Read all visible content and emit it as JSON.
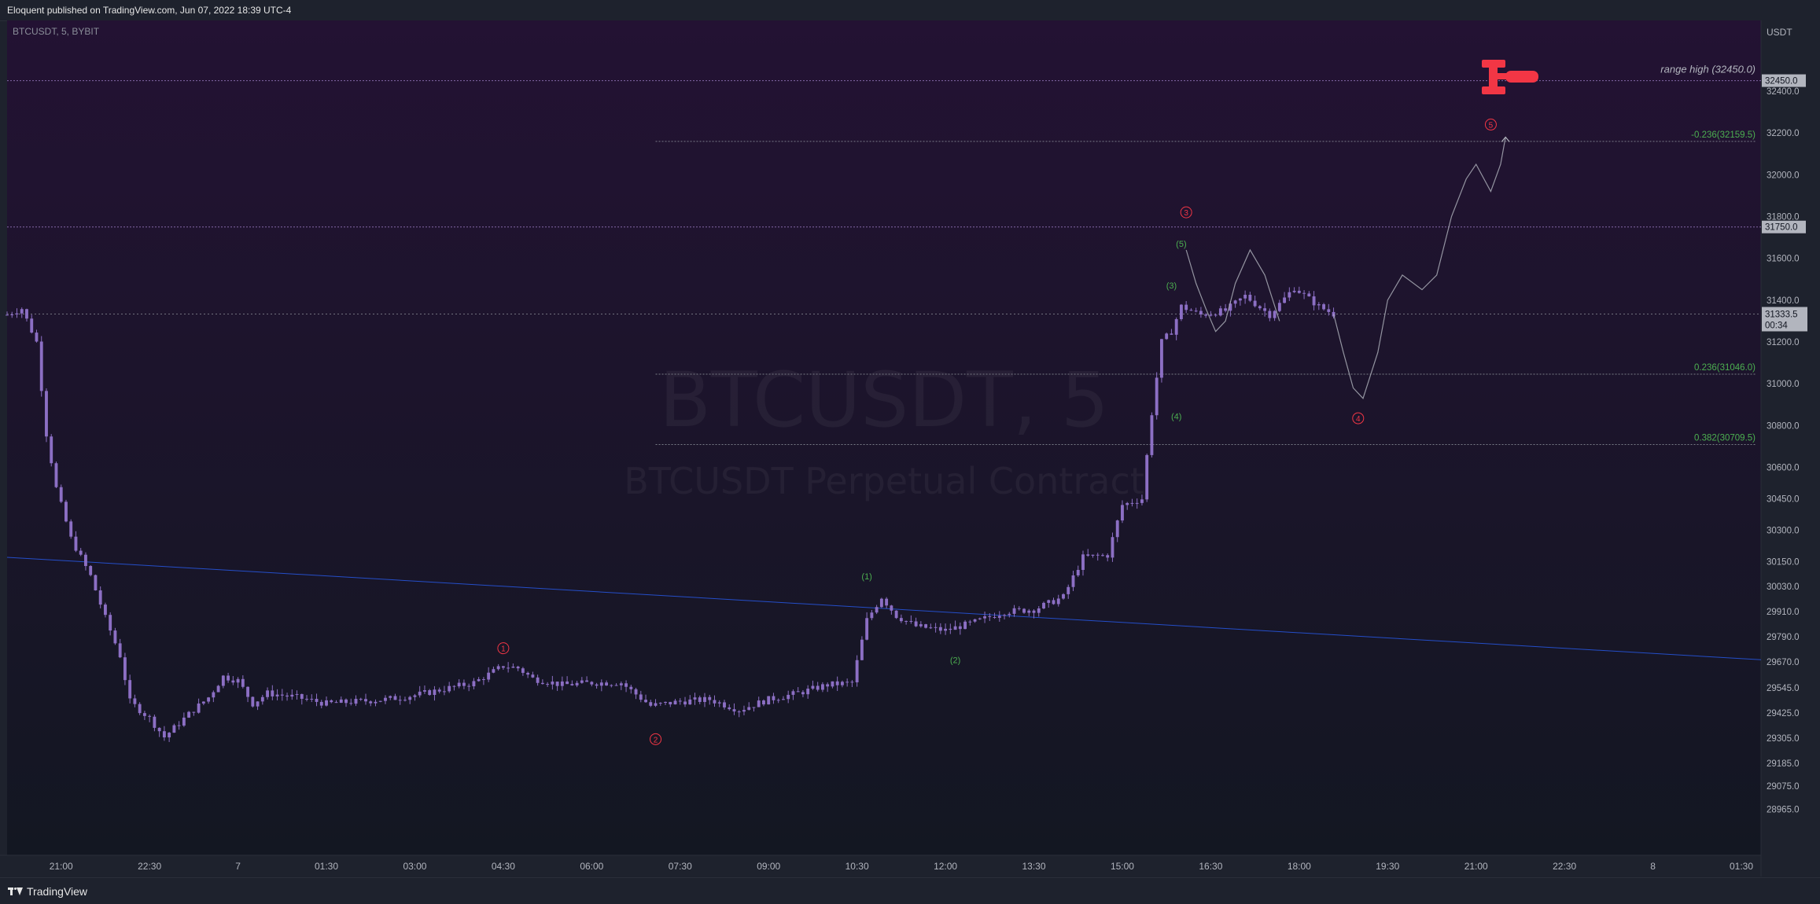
{
  "header": {
    "published_text": "Eloquent published on TradingView.com, Jun 07, 2022 18:39 UTC-4"
  },
  "footer": {
    "brand": "TradingView"
  },
  "colors": {
    "candle": "#8c6fc4",
    "background_top": "#231233",
    "background_bottom": "#131722",
    "fib_text": "#4caf50",
    "wave_major": "#f23645",
    "wave_minor": "#4caf50",
    "trendline": "#2962ff",
    "range_line": "#9c7cc4",
    "axis_text": "#b2b5be",
    "logo_red": "#f23645"
  },
  "chart_data": {
    "type": "candlestick",
    "symbol_label": "BTCUSDT, 5, BYBIT",
    "watermark_symbol": "BTCUSDT, 5",
    "watermark_description": "BTCUSDT Perpetual Contract",
    "currency": "USDT",
    "interval_minutes": 5,
    "x_range": [
      "2022-06-06 20:05",
      "2022-06-08 01:50"
    ],
    "ylim": [
      28850,
      32580
    ],
    "y_ticks": [
      "32400.0",
      "32200.0",
      "32000.0",
      "31800.0",
      "31600.0",
      "31400.0",
      "31200.0",
      "31000.0",
      "30800.0",
      "30600.0",
      "30450.0",
      "30300.0",
      "30150.0",
      "30030.0",
      "29910.0",
      "29790.0",
      "29670.0",
      "29545.0",
      "29425.0",
      "29305.0",
      "29185.0",
      "29075.0",
      "28965.0"
    ],
    "x_ticks": [
      {
        "label": "21:00",
        "time": "2022-06-06 21:00"
      },
      {
        "label": "22:30",
        "time": "2022-06-06 22:30"
      },
      {
        "label": "7",
        "time": "2022-06-07 00:00"
      },
      {
        "label": "01:30",
        "time": "2022-06-07 01:30"
      },
      {
        "label": "03:00",
        "time": "2022-06-07 03:00"
      },
      {
        "label": "04:30",
        "time": "2022-06-07 04:30"
      },
      {
        "label": "06:00",
        "time": "2022-06-07 06:00"
      },
      {
        "label": "07:30",
        "time": "2022-06-07 07:30"
      },
      {
        "label": "09:00",
        "time": "2022-06-07 09:00"
      },
      {
        "label": "10:30",
        "time": "2022-06-07 10:30"
      },
      {
        "label": "12:00",
        "time": "2022-06-07 12:00"
      },
      {
        "label": "13:30",
        "time": "2022-06-07 13:30"
      },
      {
        "label": "15:00",
        "time": "2022-06-07 15:00"
      },
      {
        "label": "16:30",
        "time": "2022-06-07 16:30"
      },
      {
        "label": "18:00",
        "time": "2022-06-07 18:00"
      },
      {
        "label": "19:30",
        "time": "2022-06-07 19:30"
      },
      {
        "label": "21:00",
        "time": "2022-06-07 21:00"
      },
      {
        "label": "22:30",
        "time": "2022-06-07 22:30"
      },
      {
        "label": "8",
        "time": "2022-06-08 00:00"
      },
      {
        "label": "01:30",
        "time": "2022-06-08 01:30"
      }
    ],
    "close_path": [
      [
        "2022-06-06 20:05",
        31330
      ],
      [
        "2022-06-06 20:20",
        31360
      ],
      [
        "2022-06-06 20:35",
        31200
      ],
      [
        "2022-06-06 20:45",
        30760
      ],
      [
        "2022-06-06 20:55",
        30500
      ],
      [
        "2022-06-06 21:10",
        30260
      ],
      [
        "2022-06-06 21:30",
        30080
      ],
      [
        "2022-06-06 21:45",
        29880
      ],
      [
        "2022-06-06 22:00",
        29700
      ],
      [
        "2022-06-06 22:10",
        29480
      ],
      [
        "2022-06-06 22:30",
        29400
      ],
      [
        "2022-06-06 22:45",
        29310
      ],
      [
        "2022-06-06 23:10",
        29420
      ],
      [
        "2022-06-06 23:30",
        29500
      ],
      [
        "2022-06-06 23:45",
        29600
      ],
      [
        "2022-06-07 00:00",
        29580
      ],
      [
        "2022-06-07 00:15",
        29470
      ],
      [
        "2022-06-07 00:30",
        29520
      ],
      [
        "2022-06-07 01:00",
        29500
      ],
      [
        "2022-06-07 01:30",
        29470
      ],
      [
        "2022-06-07 02:00",
        29480
      ],
      [
        "2022-06-07 02:30",
        29490
      ],
      [
        "2022-06-07 03:00",
        29510
      ],
      [
        "2022-06-07 03:30",
        29540
      ],
      [
        "2022-06-07 04:00",
        29570
      ],
      [
        "2022-06-07 04:30",
        29650
      ],
      [
        "2022-06-07 04:45",
        29640
      ],
      [
        "2022-06-07 05:00",
        29590
      ],
      [
        "2022-06-07 05:30",
        29560
      ],
      [
        "2022-06-07 06:00",
        29570
      ],
      [
        "2022-06-07 06:30",
        29570
      ],
      [
        "2022-06-07 07:00",
        29460
      ],
      [
        "2022-06-07 07:30",
        29480
      ],
      [
        "2022-06-07 08:00",
        29490
      ],
      [
        "2022-06-07 08:30",
        29440
      ],
      [
        "2022-06-07 09:00",
        29490
      ],
      [
        "2022-06-07 09:30",
        29520
      ],
      [
        "2022-06-07 10:00",
        29560
      ],
      [
        "2022-06-07 10:25",
        29570
      ],
      [
        "2022-06-07 10:40",
        29870
      ],
      [
        "2022-06-07 10:55",
        29980
      ],
      [
        "2022-06-07 11:10",
        29890
      ],
      [
        "2022-06-07 11:30",
        29840
      ],
      [
        "2022-06-07 12:00",
        29820
      ],
      [
        "2022-06-07 12:30",
        29860
      ],
      [
        "2022-06-07 13:00",
        29910
      ],
      [
        "2022-06-07 13:30",
        29920
      ],
      [
        "2022-06-07 14:00",
        29980
      ],
      [
        "2022-06-07 14:20",
        30170
      ],
      [
        "2022-06-07 14:45",
        30180
      ],
      [
        "2022-06-07 15:00",
        30420
      ],
      [
        "2022-06-07 15:20",
        30450
      ],
      [
        "2022-06-07 15:30",
        30860
      ],
      [
        "2022-06-07 15:40",
        31200
      ],
      [
        "2022-06-07 15:50",
        31250
      ],
      [
        "2022-06-07 16:00",
        31370
      ],
      [
        "2022-06-07 16:20",
        31330
      ],
      [
        "2022-06-07 16:45",
        31350
      ],
      [
        "2022-06-07 17:05",
        31420
      ],
      [
        "2022-06-07 17:30",
        31330
      ],
      [
        "2022-06-07 17:55",
        31460
      ],
      [
        "2022-06-07 18:20",
        31370
      ],
      [
        "2022-06-07 18:35",
        31333.5
      ]
    ],
    "projection_path": [
      [
        "2022-06-07 18:35",
        31333.5
      ],
      [
        "2022-06-07 18:45",
        31150
      ],
      [
        "2022-06-07 18:55",
        30980
      ],
      [
        "2022-06-07 19:05",
        30930
      ],
      [
        "2022-06-07 19:20",
        31150
      ],
      [
        "2022-06-07 19:30",
        31400
      ],
      [
        "2022-06-07 19:45",
        31520
      ],
      [
        "2022-06-07 20:05",
        31450
      ],
      [
        "2022-06-07 20:20",
        31520
      ],
      [
        "2022-06-07 20:35",
        31800
      ],
      [
        "2022-06-07 20:50",
        31980
      ],
      [
        "2022-06-07 21:00",
        32050
      ],
      [
        "2022-06-07 21:15",
        31920
      ],
      [
        "2022-06-07 21:25",
        32050
      ],
      [
        "2022-06-07 21:30",
        32180
      ]
    ],
    "intraday_wave_path": [
      [
        "2022-06-07 16:05",
        31640
      ],
      [
        "2022-06-07 16:15",
        31480
      ],
      [
        "2022-06-07 16:25",
        31360
      ],
      [
        "2022-06-07 16:35",
        31250
      ],
      [
        "2022-06-07 16:45",
        31300
      ],
      [
        "2022-06-07 16:55",
        31480
      ],
      [
        "2022-06-07 17:10",
        31640
      ],
      [
        "2022-06-07 17:25",
        31520
      ],
      [
        "2022-06-07 17:40",
        31300
      ]
    ],
    "last_price": {
      "value": "31333.5",
      "countdown": "00:34"
    },
    "horizontal_levels": [
      {
        "price": 32450,
        "label": "32450.0",
        "text": "range high (32450.0)"
      },
      {
        "price": 31750,
        "label": "31750.0",
        "text": ""
      }
    ],
    "fib_levels": [
      {
        "price": 32159.5,
        "text": "-0.236(32159.5)"
      },
      {
        "price": 31046.0,
        "text": "0.236(31046.0)"
      },
      {
        "price": 30709.5,
        "text": "0.382(30709.5)"
      }
    ],
    "fib_start_time": "2022-06-07 07:05",
    "trendline": [
      [
        "2022-06-06 20:05",
        30170
      ],
      [
        "2022-06-08 01:50",
        29680
      ]
    ],
    "wave_labels_major": [
      {
        "label": "1",
        "time": "2022-06-07 04:30",
        "price": 29735
      },
      {
        "label": "2",
        "time": "2022-06-07 07:05",
        "price": 29300
      },
      {
        "label": "3",
        "time": "2022-06-07 16:05",
        "price": 31820
      },
      {
        "label": "4",
        "time": "2022-06-07 19:00",
        "price": 30835
      },
      {
        "label": "5",
        "time": "2022-06-07 21:15",
        "price": 32240
      }
    ],
    "wave_labels_minor": [
      {
        "label": "(1)",
        "time": "2022-06-07 10:40",
        "price": 30080
      },
      {
        "label": "(2)",
        "time": "2022-06-07 12:10",
        "price": 29680
      },
      {
        "label": "(3)",
        "time": "2022-06-07 15:50",
        "price": 31470
      },
      {
        "label": "(4)",
        "time": "2022-06-07 15:55",
        "price": 30845
      },
      {
        "label": "(5)",
        "time": "2022-06-07 16:00",
        "price": 31670
      }
    ]
  }
}
